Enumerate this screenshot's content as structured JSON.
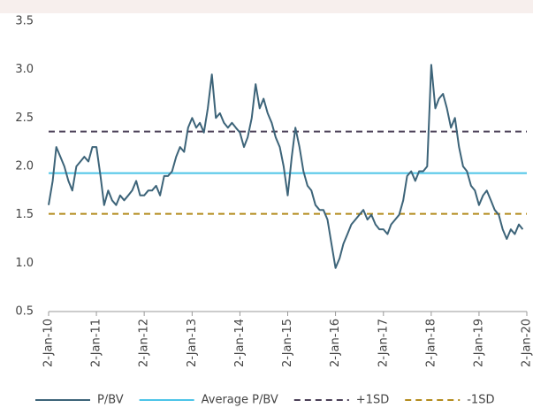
{
  "chart_data": {
    "type": "line",
    "x": [
      "2010-01-02",
      "2010-02-02",
      "2010-03-02",
      "2010-04-02",
      "2010-05-02",
      "2010-06-02",
      "2010-07-02",
      "2010-08-02",
      "2010-09-02",
      "2010-10-02",
      "2010-11-02",
      "2010-12-02",
      "2011-01-02",
      "2011-02-02",
      "2011-03-02",
      "2011-04-02",
      "2011-05-02",
      "2011-06-02",
      "2011-07-02",
      "2011-08-02",
      "2011-09-02",
      "2011-10-02",
      "2011-11-02",
      "2011-12-02",
      "2012-01-02",
      "2012-02-02",
      "2012-03-02",
      "2012-04-02",
      "2012-05-02",
      "2012-06-02",
      "2012-07-02",
      "2012-08-02",
      "2012-09-02",
      "2012-10-02",
      "2012-11-02",
      "2012-12-02",
      "2013-01-02",
      "2013-02-02",
      "2013-03-02",
      "2013-04-02",
      "2013-05-02",
      "2013-06-02",
      "2013-07-02",
      "2013-08-02",
      "2013-09-02",
      "2013-10-02",
      "2013-11-02",
      "2013-12-02",
      "2014-01-02",
      "2014-02-02",
      "2014-03-02",
      "2014-04-02",
      "2014-05-02",
      "2014-06-02",
      "2014-07-02",
      "2014-08-02",
      "2014-09-02",
      "2014-10-02",
      "2014-11-02",
      "2014-12-02",
      "2015-01-02",
      "2015-02-02",
      "2015-03-02",
      "2015-04-02",
      "2015-05-02",
      "2015-06-02",
      "2015-07-02",
      "2015-08-02",
      "2015-09-02",
      "2015-10-02",
      "2015-11-02",
      "2015-12-02",
      "2016-01-02",
      "2016-02-02",
      "2016-03-02",
      "2016-04-02",
      "2016-05-02",
      "2016-06-02",
      "2016-07-02",
      "2016-08-02",
      "2016-09-02",
      "2016-10-02",
      "2016-11-02",
      "2016-12-02",
      "2017-01-02",
      "2017-02-02",
      "2017-03-02",
      "2017-04-02",
      "2017-05-02",
      "2017-06-02",
      "2017-07-02",
      "2017-08-02",
      "2017-09-02",
      "2017-10-02",
      "2017-11-02",
      "2017-12-02",
      "2018-01-02",
      "2018-02-02",
      "2018-03-02",
      "2018-04-02",
      "2018-05-02",
      "2018-06-02",
      "2018-07-02",
      "2018-08-02",
      "2018-09-02",
      "2018-10-02",
      "2018-11-02",
      "2018-12-02",
      "2019-01-02",
      "2019-02-02",
      "2019-03-02",
      "2019-04-02",
      "2019-05-02",
      "2019-06-02",
      "2019-07-02",
      "2019-08-02",
      "2019-09-02",
      "2019-10-02",
      "2019-11-02",
      "2019-12-02"
    ],
    "series": [
      {
        "name": "P/BV",
        "color": "#3d6479",
        "values": [
          1.6,
          1.85,
          2.2,
          2.1,
          2.0,
          1.85,
          1.75,
          2.0,
          2.05,
          2.1,
          2.05,
          2.2,
          2.2,
          1.9,
          1.6,
          1.75,
          1.65,
          1.6,
          1.7,
          1.65,
          1.7,
          1.75,
          1.85,
          1.7,
          1.7,
          1.75,
          1.75,
          1.8,
          1.7,
          1.9,
          1.9,
          1.95,
          2.1,
          2.2,
          2.15,
          2.4,
          2.5,
          2.4,
          2.45,
          2.35,
          2.6,
          2.95,
          2.5,
          2.55,
          2.45,
          2.4,
          2.45,
          2.4,
          2.35,
          2.2,
          2.3,
          2.5,
          2.85,
          2.6,
          2.7,
          2.55,
          2.45,
          2.3,
          2.2,
          2.0,
          1.7,
          2.1,
          2.4,
          2.2,
          1.95,
          1.8,
          1.75,
          1.6,
          1.55,
          1.55,
          1.45,
          1.2,
          0.95,
          1.05,
          1.2,
          1.3,
          1.4,
          1.45,
          1.5,
          1.55,
          1.45,
          1.5,
          1.4,
          1.35,
          1.35,
          1.3,
          1.4,
          1.45,
          1.5,
          1.65,
          1.9,
          1.95,
          1.85,
          1.95,
          1.95,
          2.0,
          3.05,
          2.6,
          2.7,
          2.75,
          2.6,
          2.4,
          2.5,
          2.2,
          2.0,
          1.95,
          1.8,
          1.75,
          1.6,
          1.7,
          1.75,
          1.65,
          1.55,
          1.5,
          1.35,
          1.25,
          1.35,
          1.3,
          1.4,
          1.35
        ]
      }
    ],
    "reference_lines": [
      {
        "name": "Average P/BV",
        "value": 1.93,
        "color": "#4cc4e8",
        "dash": false
      },
      {
        "name": "+1SD",
        "value": 2.36,
        "color": "#4b4058",
        "dash": true
      },
      {
        "name": "-1SD",
        "value": 1.51,
        "color": "#b48c1e",
        "dash": true
      }
    ],
    "xlim": [
      "2010-01-02",
      "2020-01-02"
    ],
    "xticks": [
      {
        "value": "2010-01-02",
        "label": "2-Jan-10"
      },
      {
        "value": "2011-01-02",
        "label": "2-Jan-11"
      },
      {
        "value": "2012-01-02",
        "label": "2-Jan-12"
      },
      {
        "value": "2013-01-02",
        "label": "2-Jan-13"
      },
      {
        "value": "2014-01-02",
        "label": "2-Jan-14"
      },
      {
        "value": "2015-01-02",
        "label": "2-Jan-15"
      },
      {
        "value": "2016-01-02",
        "label": "2-Jan-16"
      },
      {
        "value": "2017-01-02",
        "label": "2-Jan-17"
      },
      {
        "value": "2018-01-02",
        "label": "2-Jan-18"
      },
      {
        "value": "2019-01-02",
        "label": "2-Jan-19"
      },
      {
        "value": "2020-01-02",
        "label": "2-Jan-20"
      }
    ],
    "ylim": [
      0.5,
      3.5
    ],
    "yticks": [
      0.5,
      {
        "value": 1,
        "label": "1.0"
      },
      1.5,
      {
        "value": 2,
        "label": "2.0"
      },
      2.5,
      {
        "value": 3,
        "label": "3.0"
      },
      3.5
    ],
    "legend": "bottom"
  }
}
